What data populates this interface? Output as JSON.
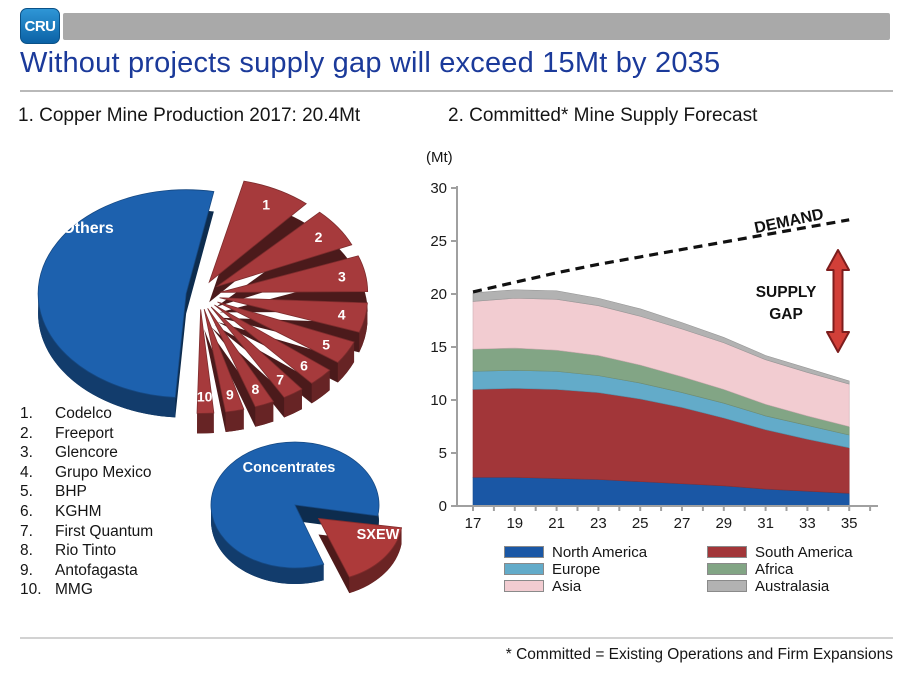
{
  "header": {
    "logo_text": "CRU"
  },
  "title": "Without projects supply gap will exceed 15Mt by 2035",
  "left_section": {
    "heading": "1. Copper Mine Production 2017: 20.4Mt"
  },
  "right_section": {
    "heading": "2. Committed* Mine Supply Forecast",
    "demand_label": "DEMAND",
    "supply_gap_label": "SUPPLY GAP"
  },
  "footnote": "* Committed = Existing Operations and Firm Expansions",
  "colors": {
    "title_blue": "#1b3a9a",
    "pie_blue_top": "#1d61ae",
    "pie_blue_dark": "#0f3b74",
    "pie_red_top": "#a63a3c",
    "pie_red_dark": "#5c1517",
    "arrow_red": "#d23f38",
    "arrow_outline": "#7d1d1d",
    "axis_gray": "#a0a0a0"
  },
  "chart_data": [
    {
      "type": "pie",
      "title": "Copper Mine Production 2017: 20.4Mt",
      "total": "20.4Mt",
      "slices": [
        {
          "label": "Others",
          "value": 52.5,
          "color": "#1d61ae"
        },
        {
          "rank": 1,
          "label": "Codelco",
          "value": 8.5,
          "color": "#a63a3c"
        },
        {
          "rank": 2,
          "label": "Freeport",
          "value": 7.0,
          "color": "#a63a3c"
        },
        {
          "rank": 3,
          "label": "Glencore",
          "value": 6.5,
          "color": "#a63a3c"
        },
        {
          "rank": 4,
          "label": "Grupo Mexico",
          "value": 5.5,
          "color": "#a63a3c"
        },
        {
          "rank": 5,
          "label": "BHP",
          "value": 4.5,
          "color": "#a63a3c"
        },
        {
          "rank": 6,
          "label": "KGHM",
          "value": 3.7,
          "color": "#a63a3c"
        },
        {
          "rank": 7,
          "label": "First Quantum",
          "value": 3.2,
          "color": "#a63a3c"
        },
        {
          "rank": 8,
          "label": "Rio Tinto",
          "value": 3.0,
          "color": "#a63a3c"
        },
        {
          "rank": 9,
          "label": "Antofagasta",
          "value": 2.9,
          "color": "#a63a3c"
        },
        {
          "rank": 10,
          "label": "MMG",
          "value": 2.7,
          "color": "#a63a3c"
        }
      ]
    },
    {
      "type": "pie",
      "title": "Concentrates vs SXEW",
      "slices": [
        {
          "label": "Concentrates",
          "value": 82,
          "color": "#1d61ae"
        },
        {
          "label": "SXEW",
          "value": 18,
          "color": "#ad3a3a"
        }
      ]
    },
    {
      "type": "area",
      "stacked": true,
      "title": "Committed* Mine Supply Forecast",
      "unit": "(Mt)",
      "x": [
        17,
        19,
        21,
        23,
        25,
        27,
        29,
        31,
        33,
        35
      ],
      "x_tick_labels": [
        "17",
        "19",
        "21",
        "23",
        "25",
        "27",
        "29",
        "31",
        "33",
        "35"
      ],
      "ylim": [
        0,
        30
      ],
      "y_ticks": [
        0,
        5,
        10,
        15,
        20,
        25,
        30
      ],
      "legend_position": "bottom",
      "series": [
        {
          "name": "North America",
          "color": "#1a57a5",
          "values": [
            2.7,
            2.7,
            2.6,
            2.5,
            2.3,
            2.1,
            1.9,
            1.6,
            1.4,
            1.2
          ]
        },
        {
          "name": "South America",
          "color": "#a23639",
          "values": [
            8.3,
            8.4,
            8.4,
            8.2,
            7.8,
            7.2,
            6.4,
            5.6,
            4.9,
            4.3
          ]
        },
        {
          "name": "Europe",
          "color": "#63abc9",
          "values": [
            1.7,
            1.7,
            1.7,
            1.6,
            1.5,
            1.4,
            1.4,
            1.3,
            1.3,
            1.2
          ]
        },
        {
          "name": "Africa",
          "color": "#82a585",
          "values": [
            2.1,
            2.1,
            2.0,
            1.9,
            1.7,
            1.5,
            1.3,
            1.1,
            0.9,
            0.8
          ]
        },
        {
          "name": "Asia",
          "color": "#f2ccd1",
          "values": [
            4.5,
            4.7,
            4.8,
            4.7,
            4.6,
            4.5,
            4.4,
            4.2,
            4.1,
            4.0
          ]
        },
        {
          "name": "Australasia",
          "color": "#b2b2b2",
          "values": [
            0.8,
            0.8,
            0.8,
            0.7,
            0.7,
            0.6,
            0.5,
            0.4,
            0.4,
            0.3
          ]
        }
      ],
      "demand": {
        "name": "DEMAND",
        "style": "dashed",
        "color": "#111111",
        "values": [
          20.2,
          21.1,
          22.0,
          22.8,
          23.5,
          24.2,
          24.9,
          25.6,
          26.3,
          27.0
        ]
      },
      "annotations": {
        "demand_label": "DEMAND",
        "supply_gap_label": "SUPPLY GAP"
      }
    }
  ]
}
